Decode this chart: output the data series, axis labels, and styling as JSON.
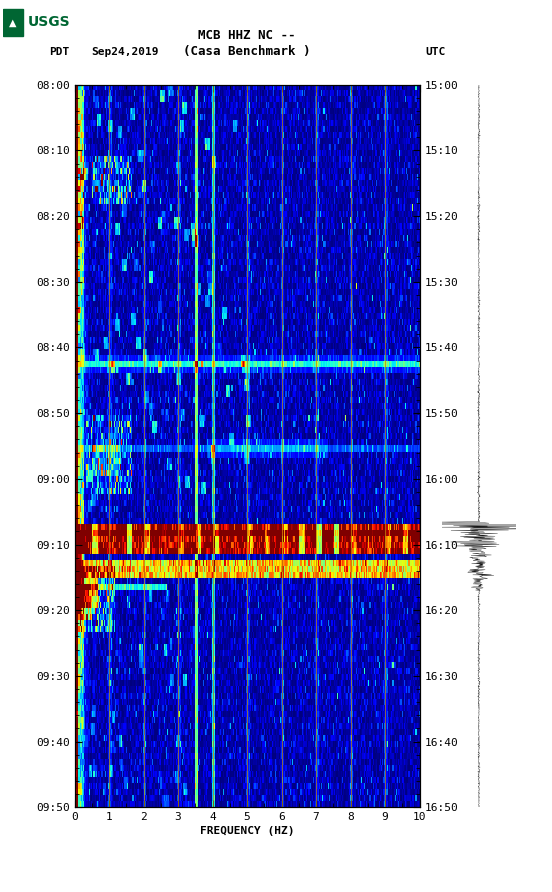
{
  "title_line1": "MCB HHZ NC --",
  "title_line2": "(Casa Benchmark )",
  "date_label": "Sep24,2019",
  "tz_left": "PDT",
  "tz_right": "UTC",
  "freq_min": 0,
  "freq_max": 10,
  "time_ticks_left": [
    "08:00",
    "08:10",
    "08:20",
    "08:30",
    "08:40",
    "08:50",
    "09:00",
    "09:10",
    "09:20",
    "09:30",
    "09:40",
    "09:50"
  ],
  "time_ticks_right": [
    "15:00",
    "15:10",
    "15:20",
    "15:30",
    "15:40",
    "15:50",
    "16:00",
    "16:10",
    "16:20",
    "16:30",
    "16:40",
    "16:50"
  ],
  "freq_ticks": [
    0,
    1,
    2,
    3,
    4,
    5,
    6,
    7,
    8,
    9,
    10
  ],
  "xlabel": "FREQUENCY (HZ)",
  "background_color": "#ffffff",
  "colormap": "jet",
  "logo_color": "#006633",
  "vline_color": "#b8860b",
  "vline_freqs": [
    1.0,
    2.0,
    3.0,
    4.0,
    5.0,
    6.0,
    7.0,
    8.0,
    9.0
  ],
  "num_time_rows": 120,
  "num_freq_cols": 300,
  "eq_row": 74,
  "eq_row2": 79
}
